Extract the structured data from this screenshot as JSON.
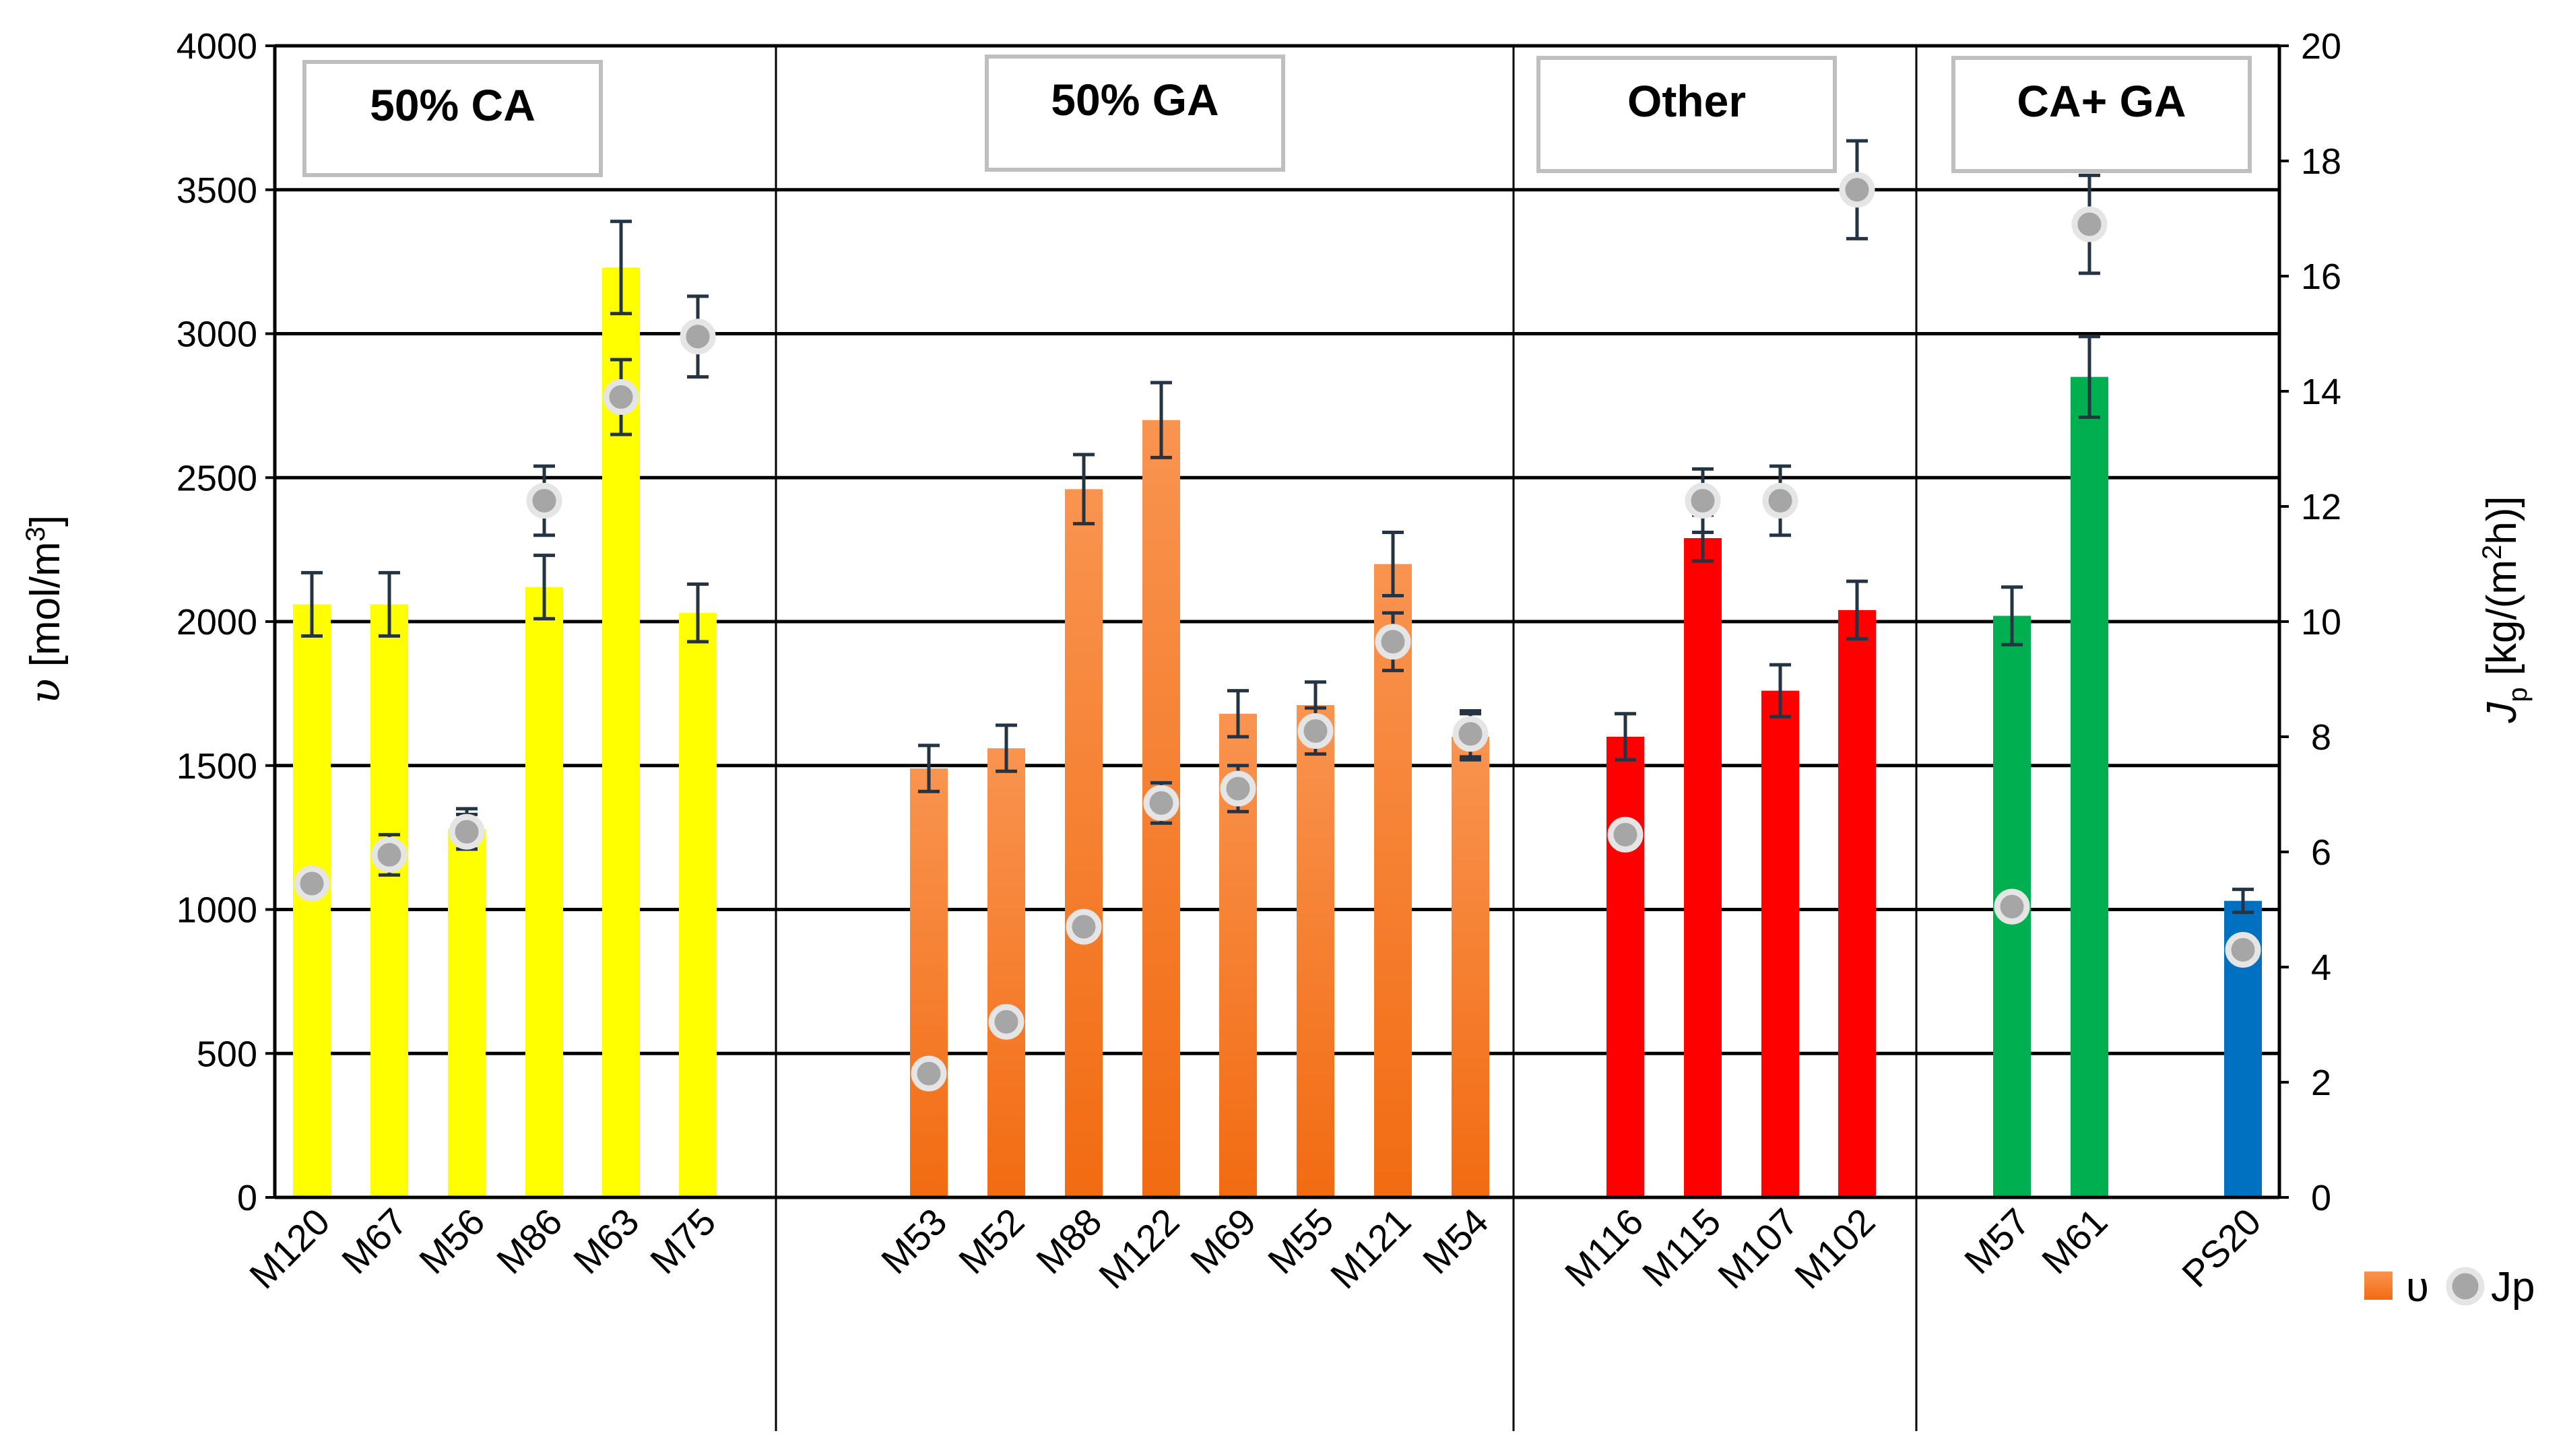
{
  "chart_data": {
    "type": "bar",
    "title": "",
    "ylabel": "υ [mol/m3]",
    "ylabel_parts": {
      "symbol": "υ",
      "unit_pre": " [mol/m",
      "unit_sup": "3",
      "unit_post": "]"
    },
    "y2label": "Jp [kg/(m2h)]",
    "y2label_parts": {
      "symbol": "J",
      "sub": "p",
      "unit_pre": " [kg/(m",
      "unit_sup": "2",
      "unit_post": "h)]"
    },
    "ylim": [
      0,
      4000
    ],
    "y2lim": [
      0,
      20
    ],
    "yticks": [
      "0",
      "500",
      "1000",
      "1500",
      "2000",
      "2500",
      "3000",
      "3500",
      "4000"
    ],
    "y2ticks": [
      "0",
      "2",
      "4",
      "6",
      "8",
      "10",
      "12",
      "14",
      "16",
      "18",
      "20"
    ],
    "grid": true,
    "legend": {
      "position": "bottom-right",
      "bar_label": "υ",
      "point_label": "Jp"
    },
    "colors": {
      "yellow": "#FFFF00",
      "orange": "#F4792A",
      "orange_light": "#F99450",
      "red": "#FF0000",
      "green": "#00B050",
      "blue": "#0070C0",
      "errorbar": "#253445",
      "point_fill": "#A6A6A6",
      "point_stroke": "#E5E5E5"
    },
    "groups": [
      {
        "label": "50% CA",
        "categories": [
          "M120",
          "M67",
          "M56",
          "M86",
          "M63",
          "M75"
        ]
      },
      {
        "label": "50% GA",
        "categories": [
          "M53",
          "M52",
          "M88",
          "M122",
          "M69",
          "M55",
          "M121",
          "M54"
        ]
      },
      {
        "label": "Other",
        "categories": [
          "M116",
          "M115",
          "M107",
          "M102"
        ]
      },
      {
        "label": "CA+ GA",
        "categories": [
          "M57",
          "M61",
          "PS20"
        ]
      }
    ],
    "categories": [
      "M120",
      "M67",
      "M56",
      "M86",
      "M63",
      "M75",
      "M53",
      "M52",
      "M88",
      "M122",
      "M69",
      "M55",
      "M121",
      "M54",
      "M116",
      "M115",
      "M107",
      "M102",
      "M57",
      "M61",
      "PS20"
    ],
    "series": [
      {
        "name": "υ",
        "axis": "left",
        "kind": "bar",
        "values": [
          2060,
          2060,
          1280,
          2120,
          3230,
          2030,
          1490,
          1560,
          2460,
          2700,
          1680,
          1710,
          2200,
          1600,
          1600,
          2290,
          1760,
          2040,
          2020,
          2850,
          1030
        ],
        "errors": [
          110,
          110,
          70,
          110,
          160,
          100,
          80,
          80,
          120,
          130,
          80,
          80,
          110,
          80,
          80,
          80,
          90,
          100,
          100,
          140,
          40
        ],
        "colors": [
          "yellow",
          "yellow",
          "yellow",
          "yellow",
          "yellow",
          "yellow",
          "orange",
          "orange",
          "orange",
          "orange",
          "orange",
          "orange",
          "orange",
          "orange",
          "red",
          "red",
          "red",
          "red",
          "green",
          "green",
          "blue"
        ]
      },
      {
        "name": "Jp",
        "axis": "right",
        "kind": "point",
        "values": [
          5.45,
          5.95,
          6.35,
          12.1,
          13.9,
          14.95,
          2.15,
          3.05,
          4.7,
          6.85,
          7.1,
          8.1,
          9.65,
          8.05,
          6.3,
          12.1,
          12.1,
          17.5,
          5.05,
          16.9,
          4.3
        ],
        "errors": [
          0,
          0.35,
          0.3,
          0.6,
          0.65,
          0.7,
          0,
          0,
          0,
          0.35,
          0.4,
          0.4,
          0.5,
          0.4,
          0,
          0.55,
          0.6,
          0.85,
          0,
          0.85,
          0
        ]
      }
    ]
  }
}
